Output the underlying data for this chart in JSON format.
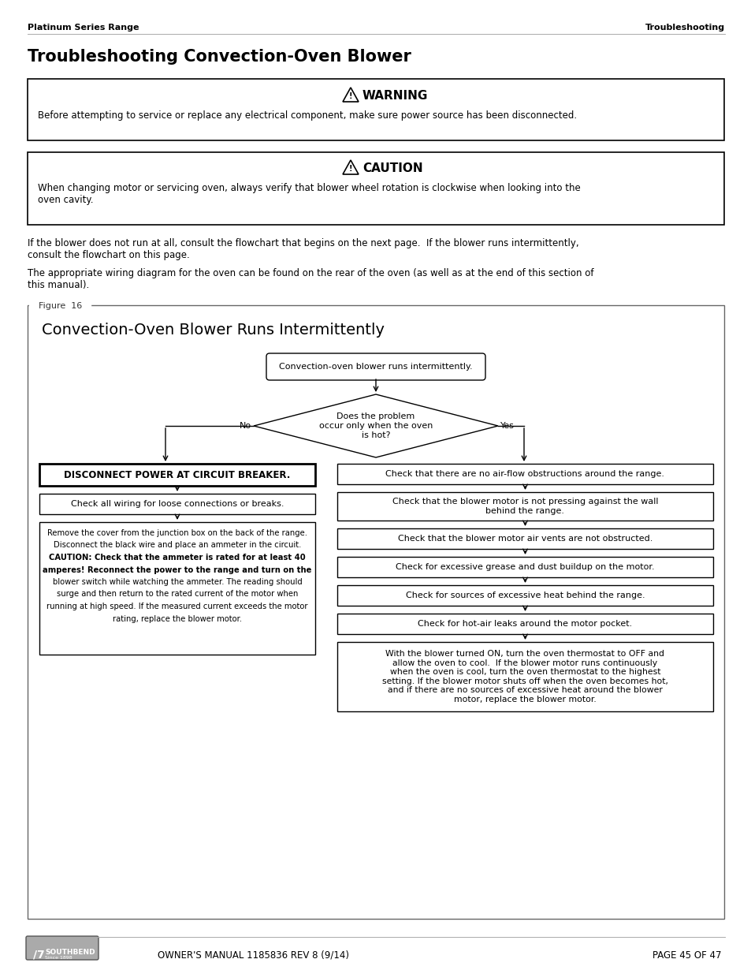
{
  "page_header_left": "Platinum Series Range",
  "page_header_right": "Troubleshooting",
  "main_title": "Troubleshooting Convection-Oven Blower",
  "warning_title": "WARNING",
  "warning_text": "Before attempting to service or replace any electrical component, make sure power source has been disconnected.",
  "caution_title": "CAUTION",
  "caution_text": "When changing motor or servicing oven, always verify that blower wheel rotation is clockwise when looking into the\noven cavity.",
  "body_text1": "If the blower does not run at all, consult the flowchart that begins on the next page.  If the blower runs intermittently,\nconsult the flowchart on this page.",
  "body_text2": "The appropriate wiring diagram for the oven can be found on the rear of the oven (as well as at the end of this section of\nthis manual).",
  "figure_label": "Figure  16",
  "figure_title": "Convection-Oven Blower Runs Intermittently",
  "flow_start": "Convection-oven blower runs intermittently.",
  "flow_decision": "Does the problem\noccur only when the oven\nis hot?",
  "flow_no": "No",
  "flow_yes": "Yes",
  "flow_left1": "DISCONNECT POWER AT CIRCUIT BREAKER.",
  "flow_left2": "Check all wiring for loose connections or breaks.",
  "flow_left3_lines": [
    {
      "text": "Remove the cover from the junction box on the back of the range.",
      "bold": false
    },
    {
      "text": "Disconnect the black wire and place an ammeter in the circuit.",
      "bold": false
    },
    {
      "text": "CAUTION: Check that the ammeter is rated for at least 40",
      "bold": true
    },
    {
      "text": "amperes! Reconnect the power to the range and turn on the",
      "bold": true
    },
    {
      "text": "blower switch while watching the ammeter. The reading should",
      "bold": false
    },
    {
      "text": "surge and then return to the rated current of the motor when",
      "bold": false
    },
    {
      "text": "running at high speed. If the measured current exceeds the motor",
      "bold": false
    },
    {
      "text": "rating, replace the blower motor.",
      "bold": false
    }
  ],
  "flow_right1": "Check that there are no air-flow obstructions around the range.",
  "flow_right2": "Check that the blower motor is not pressing against the wall\nbehind the range.",
  "flow_right3": "Check that the blower motor air vents are not obstructed.",
  "flow_right4": "Check for excessive grease and dust buildup on the motor.",
  "flow_right5": "Check for sources of excessive heat behind the range.",
  "flow_right6": "Check for hot-air leaks around the motor pocket.",
  "flow_right7": "With the blower turned ON, turn the oven thermostat to OFF and\nallow the oven to cool.  If the blower motor runs continuously\nwhen the oven is cool, turn the oven thermostat to the highest\nsetting. If the blower motor shuts off when the oven becomes hot,\nand if there are no sources of excessive heat around the blower\nmotor, replace the blower motor.",
  "footer_manual": "OWNER'S MANUAL 1185836 REV 8 (9/14)",
  "footer_page": "PAGE 45 OF 47",
  "bg_color": "#ffffff",
  "text_color": "#000000"
}
